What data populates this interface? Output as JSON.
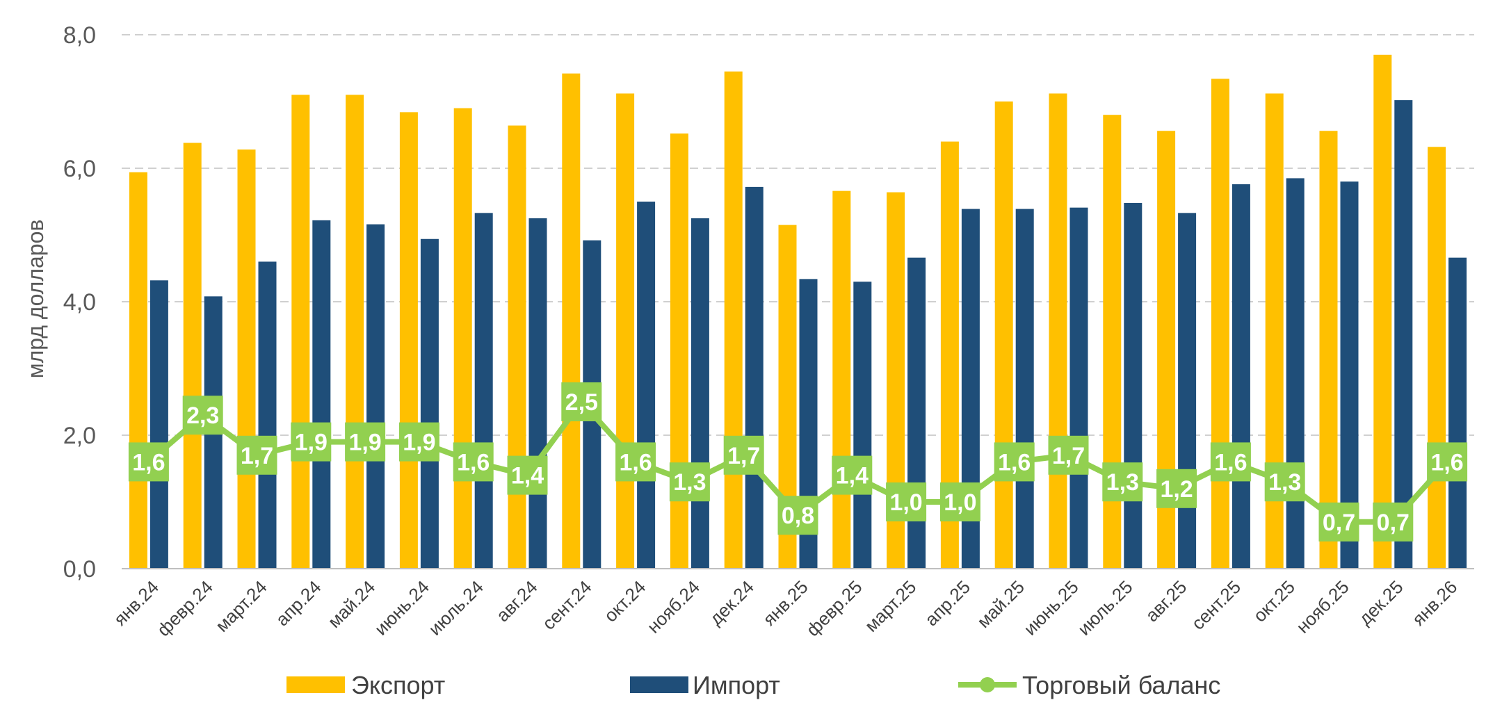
{
  "chart_data": {
    "type": "bar",
    "ylabel": "млрд долларов",
    "xlabel": "",
    "ylim": [
      0,
      8
    ],
    "yticks": [
      "0,0",
      "2,0",
      "4,0",
      "6,0",
      "8,0"
    ],
    "grid": true,
    "legend_position": "bottom",
    "categories": [
      "янв.24",
      "февр.24",
      "март.24",
      "апр.24",
      "май.24",
      "июнь.24",
      "июль.24",
      "авг.24",
      "сент.24",
      "окт.24",
      "нояб.24",
      "дек.24",
      "янв.25",
      "февр.25",
      "март.25",
      "апр.25",
      "май.25",
      "июнь.25",
      "июль.25",
      "авг.25",
      "сент.25",
      "окт.25",
      "нояб.25",
      "дек.25",
      "янв.26"
    ],
    "series": [
      {
        "name": "Экспорт",
        "type": "bar",
        "color": "#FFC000",
        "values": [
          5.94,
          6.38,
          6.28,
          7.1,
          7.1,
          6.84,
          6.9,
          6.64,
          7.42,
          7.12,
          6.52,
          7.45,
          5.15,
          5.66,
          5.64,
          6.4,
          7.0,
          7.12,
          6.8,
          6.56,
          7.34,
          7.12,
          6.56,
          7.7,
          6.32
        ]
      },
      {
        "name": "Импорт",
        "type": "bar",
        "color": "#1F4E79",
        "values": [
          4.32,
          4.08,
          4.6,
          5.22,
          5.16,
          4.94,
          5.33,
          5.25,
          4.92,
          5.5,
          5.25,
          5.72,
          4.34,
          4.3,
          4.66,
          5.39,
          5.39,
          5.41,
          5.48,
          5.33,
          5.76,
          5.85,
          5.8,
          7.02,
          4.66
        ]
      },
      {
        "name": "Торговый баланс",
        "type": "line",
        "color": "#92D050",
        "values": [
          1.6,
          2.3,
          1.7,
          1.9,
          1.9,
          1.9,
          1.6,
          1.4,
          2.5,
          1.6,
          1.3,
          1.7,
          0.8,
          1.4,
          1.0,
          1.0,
          1.6,
          1.7,
          1.3,
          1.2,
          1.6,
          1.3,
          0.7,
          0.7,
          1.6
        ],
        "labels": [
          "1,6",
          "2,3",
          "1,7",
          "1,9",
          "1,9",
          "1,9",
          "1,6",
          "1,4",
          "2,5",
          "1,6",
          "1,3",
          "1,7",
          "0,8",
          "1,4",
          "1,0",
          "1,0",
          "1,6",
          "1,7",
          "1,3",
          "1,2",
          "1,6",
          "1,3",
          "0,7",
          "0,7",
          "1,6"
        ]
      }
    ]
  }
}
